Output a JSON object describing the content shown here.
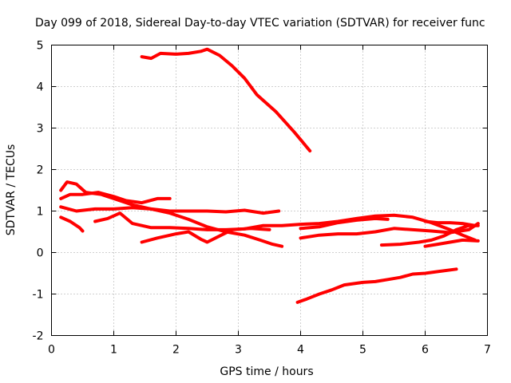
{
  "chart_data": {
    "type": "line",
    "title": "Day 099 of 2018, Sidereal Day-to-day VTEC variation (SDTVAR) for receiver func",
    "xlabel": "GPS time / hours",
    "ylabel": "SDTVAR / TECUs",
    "xlim": [
      0,
      7
    ],
    "ylim": [
      -2,
      5
    ],
    "xticks": [
      0,
      1,
      2,
      3,
      4,
      5,
      6,
      7
    ],
    "yticks": [
      -2,
      -1,
      0,
      1,
      2,
      3,
      4,
      5
    ],
    "grid": true,
    "legend": "none",
    "color": "#ff0000",
    "series": [
      {
        "name": "trace-1",
        "points": [
          [
            1.45,
            4.72
          ],
          [
            1.6,
            4.68
          ],
          [
            1.75,
            4.8
          ],
          [
            2.0,
            4.78
          ],
          [
            2.2,
            4.8
          ],
          [
            2.4,
            4.85
          ],
          [
            2.5,
            4.9
          ],
          [
            2.7,
            4.75
          ],
          [
            2.9,
            4.5
          ],
          [
            3.1,
            4.2
          ],
          [
            3.3,
            3.8
          ],
          [
            3.6,
            3.4
          ],
          [
            3.9,
            2.9
          ],
          [
            4.15,
            2.45
          ]
        ]
      },
      {
        "name": "trace-2",
        "points": [
          [
            0.15,
            1.3
          ],
          [
            0.3,
            1.4
          ],
          [
            0.5,
            1.4
          ],
          [
            0.75,
            1.45
          ],
          [
            1.0,
            1.35
          ],
          [
            1.2,
            1.25
          ],
          [
            1.45,
            1.2
          ],
          [
            1.7,
            1.3
          ],
          [
            1.9,
            1.3
          ]
        ]
      },
      {
        "name": "trace-3",
        "points": [
          [
            0.15,
            1.5
          ],
          [
            0.25,
            1.7
          ],
          [
            0.4,
            1.65
          ],
          [
            0.55,
            1.45
          ],
          [
            0.8,
            1.4
          ],
          [
            1.0,
            1.3
          ],
          [
            1.3,
            1.15
          ],
          [
            1.6,
            1.05
          ],
          [
            1.9,
            1.0
          ],
          [
            2.2,
            1.0
          ],
          [
            2.5,
            1.0
          ],
          [
            2.8,
            0.98
          ],
          [
            3.1,
            1.02
          ],
          [
            3.4,
            0.95
          ],
          [
            3.65,
            1.0
          ]
        ]
      },
      {
        "name": "trace-4",
        "points": [
          [
            0.15,
            1.1
          ],
          [
            0.4,
            1.0
          ],
          [
            0.7,
            1.05
          ],
          [
            1.0,
            1.05
          ],
          [
            1.3,
            1.08
          ],
          [
            1.6,
            1.05
          ],
          [
            1.9,
            0.95
          ],
          [
            2.2,
            0.8
          ],
          [
            2.5,
            0.62
          ],
          [
            2.8,
            0.5
          ],
          [
            3.1,
            0.42
          ],
          [
            3.35,
            0.3
          ],
          [
            3.55,
            0.2
          ],
          [
            3.7,
            0.15
          ]
        ]
      },
      {
        "name": "trace-5",
        "points": [
          [
            0.15,
            0.85
          ],
          [
            0.3,
            0.75
          ],
          [
            0.45,
            0.6
          ],
          [
            0.5,
            0.52
          ]
        ]
      },
      {
        "name": "trace-6",
        "points": [
          [
            0.7,
            0.75
          ],
          [
            0.9,
            0.82
          ],
          [
            1.1,
            0.95
          ],
          [
            1.3,
            0.7
          ],
          [
            1.6,
            0.6
          ],
          [
            1.9,
            0.6
          ],
          [
            2.2,
            0.58
          ],
          [
            2.5,
            0.55
          ],
          [
            2.8,
            0.55
          ],
          [
            3.1,
            0.57
          ],
          [
            3.4,
            0.65
          ],
          [
            3.7,
            0.65
          ],
          [
            4.0,
            0.68
          ],
          [
            4.3,
            0.7
          ],
          [
            4.6,
            0.75
          ],
          [
            4.9,
            0.82
          ],
          [
            5.2,
            0.88
          ],
          [
            5.5,
            0.9
          ],
          [
            5.8,
            0.85
          ],
          [
            6.1,
            0.72
          ],
          [
            6.4,
            0.55
          ],
          [
            6.6,
            0.42
          ],
          [
            6.8,
            0.3
          ]
        ]
      },
      {
        "name": "trace-7",
        "points": [
          [
            1.45,
            0.25
          ],
          [
            1.7,
            0.35
          ],
          [
            2.0,
            0.45
          ],
          [
            2.2,
            0.5
          ],
          [
            2.4,
            0.32
          ],
          [
            2.5,
            0.25
          ],
          [
            2.7,
            0.4
          ],
          [
            2.9,
            0.55
          ],
          [
            3.2,
            0.58
          ],
          [
            3.5,
            0.55
          ]
        ]
      },
      {
        "name": "trace-8",
        "points": [
          [
            4.0,
            0.35
          ],
          [
            4.3,
            0.42
          ],
          [
            4.6,
            0.45
          ],
          [
            4.9,
            0.45
          ],
          [
            5.2,
            0.5
          ],
          [
            5.5,
            0.58
          ],
          [
            5.8,
            0.55
          ],
          [
            6.1,
            0.52
          ],
          [
            6.4,
            0.48
          ],
          [
            6.7,
            0.55
          ],
          [
            6.85,
            0.7
          ]
        ]
      },
      {
        "name": "trace-9",
        "points": [
          [
            4.0,
            0.58
          ],
          [
            4.3,
            0.62
          ],
          [
            4.6,
            0.72
          ],
          [
            4.9,
            0.78
          ],
          [
            5.2,
            0.82
          ],
          [
            5.4,
            0.8
          ]
        ]
      },
      {
        "name": "trace-10",
        "points": [
          [
            5.3,
            0.18
          ],
          [
            5.6,
            0.2
          ],
          [
            5.9,
            0.25
          ],
          [
            6.1,
            0.3
          ],
          [
            6.3,
            0.4
          ],
          [
            6.5,
            0.55
          ],
          [
            6.7,
            0.65
          ],
          [
            6.85,
            0.65
          ]
        ]
      },
      {
        "name": "trace-11",
        "points": [
          [
            6.0,
            0.15
          ],
          [
            6.2,
            0.2
          ],
          [
            6.4,
            0.25
          ],
          [
            6.6,
            0.3
          ],
          [
            6.85,
            0.28
          ]
        ]
      },
      {
        "name": "trace-12",
        "points": [
          [
            6.0,
            0.75
          ],
          [
            6.2,
            0.72
          ],
          [
            6.4,
            0.72
          ],
          [
            6.6,
            0.7
          ],
          [
            6.8,
            0.65
          ]
        ]
      },
      {
        "name": "trace-13",
        "points": [
          [
            3.95,
            -1.2
          ],
          [
            4.1,
            -1.12
          ],
          [
            4.3,
            -1.0
          ],
          [
            4.5,
            -0.9
          ],
          [
            4.7,
            -0.78
          ],
          [
            5.0,
            -0.72
          ],
          [
            5.2,
            -0.7
          ],
          [
            5.4,
            -0.65
          ],
          [
            5.6,
            -0.6
          ],
          [
            5.8,
            -0.52
          ],
          [
            6.0,
            -0.5
          ],
          [
            6.2,
            -0.46
          ],
          [
            6.5,
            -0.4
          ]
        ]
      }
    ]
  }
}
